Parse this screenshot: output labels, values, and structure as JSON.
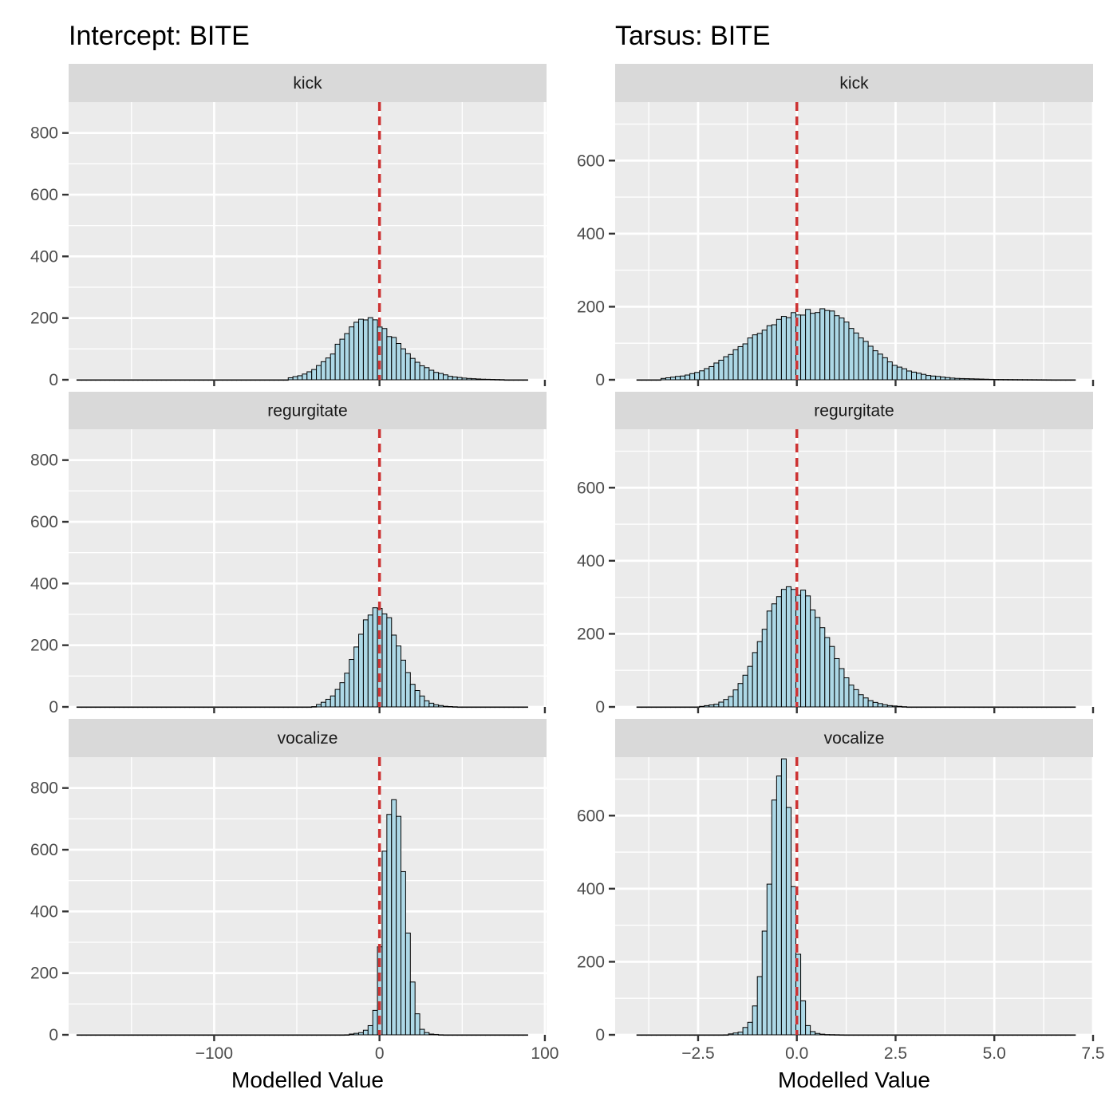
{
  "colors": {
    "bar_fill": "#add8e6",
    "bar_outline": "#000000",
    "reference_line": "#cd3333",
    "panel_background": "#ebebeb",
    "strip_background": "#d9d9d9"
  },
  "chart_data": [
    {
      "type": "bar",
      "title": "Intercept: BITE",
      "xlabel": "Modelled Value",
      "ylabel": "",
      "xlim": [
        -188,
        101
      ],
      "ylim": [
        0,
        900
      ],
      "x_ticks": [
        -100,
        0,
        100
      ],
      "x_tick_labels": [
        "−100",
        "0",
        "100"
      ],
      "y_ticks": [
        0,
        200,
        400,
        600,
        800
      ],
      "y_tick_labels": [
        "0",
        "200",
        "400",
        "600",
        "800"
      ],
      "reference_line_x": 0,
      "grid": true,
      "x_range_data": [
        -183,
        89
      ],
      "bin_width": 2.84,
      "facets": [
        {
          "label": "kick",
          "bins": [
            [
              -55,
              5
            ],
            [
              -47,
              15
            ],
            [
              -40,
              30
            ],
            [
              -35,
              55
            ],
            [
              -30,
              75
            ],
            [
              -27,
              95
            ],
            [
              -24,
              125
            ],
            [
              -20,
              150
            ],
            [
              -16,
              175
            ],
            [
              -13,
              190
            ],
            [
              -10,
              200
            ],
            [
              -6,
              195
            ],
            [
              -2,
              185
            ],
            [
              2,
              170
            ],
            [
              5,
              150
            ],
            [
              9,
              130
            ],
            [
              13,
              110
            ],
            [
              17,
              85
            ],
            [
              22,
              60
            ],
            [
              28,
              40
            ],
            [
              34,
              25
            ],
            [
              42,
              12
            ],
            [
              52,
              5
            ],
            [
              62,
              2
            ],
            [
              75,
              0.5
            ]
          ]
        },
        {
          "label": "regurgitate",
          "bins": [
            [
              -40,
              0
            ],
            [
              -35,
              12
            ],
            [
              -28,
              35
            ],
            [
              -22,
              85
            ],
            [
              -17,
              145
            ],
            [
              -13,
              215
            ],
            [
              -9,
              275
            ],
            [
              -5,
              315
            ],
            [
              -1,
              325
            ],
            [
              2,
              320
            ],
            [
              5,
              295
            ],
            [
              8,
              250
            ],
            [
              12,
              190
            ],
            [
              15,
              135
            ],
            [
              19,
              85
            ],
            [
              23,
              50
            ],
            [
              28,
              22
            ],
            [
              33,
              8
            ],
            [
              40,
              2
            ],
            [
              48,
              0
            ]
          ]
        },
        {
          "label": "vocalize",
          "bins": [
            [
              -20,
              0
            ],
            [
              -10,
              8
            ],
            [
              -6,
              25
            ],
            [
              -4,
              50
            ],
            [
              -2,
              95
            ],
            [
              -1,
              150
            ],
            [
              0,
              250
            ],
            [
              1,
              380
            ],
            [
              2,
              520
            ],
            [
              4,
              660
            ],
            [
              6,
              740
            ],
            [
              8,
              775
            ],
            [
              10,
              750
            ],
            [
              12,
              680
            ],
            [
              14,
              560
            ],
            [
              16,
              420
            ],
            [
              18,
              290
            ],
            [
              20,
              170
            ],
            [
              22,
              90
            ],
            [
              24,
              40
            ],
            [
              26,
              15
            ],
            [
              30,
              3
            ],
            [
              38,
              0
            ]
          ]
        }
      ]
    },
    {
      "type": "bar",
      "title": "Tarsus: BITE",
      "xlabel": "Modelled Value",
      "ylabel": "",
      "xlim": [
        -4.6,
        7.5
      ],
      "ylim": [
        0,
        760
      ],
      "x_ticks": [
        -2.5,
        0,
        2.5,
        5,
        7.5
      ],
      "x_tick_labels": [
        "−2.5",
        "0.0",
        "2.5",
        "5.0",
        "7.5"
      ],
      "y_ticks": [
        0,
        200,
        400,
        600
      ],
      "y_tick_labels": [
        "0",
        "200",
        "400",
        "600"
      ],
      "reference_line_x": 0,
      "grid": true,
      "x_range_data": [
        -4.05,
        7.0
      ],
      "bin_width": 0.122,
      "facets": [
        {
          "label": "kick",
          "bins": [
            [
              -3.5,
              2
            ],
            [
              -2.8,
              12
            ],
            [
              -2.4,
              25
            ],
            [
              -2.1,
              40
            ],
            [
              -1.8,
              60
            ],
            [
              -1.5,
              85
            ],
            [
              -1.2,
              110
            ],
            [
              -0.9,
              135
            ],
            [
              -0.6,
              155
            ],
            [
              -0.3,
              170
            ],
            [
              0.0,
              180
            ],
            [
              0.3,
              185
            ],
            [
              0.6,
              192
            ],
            [
              0.9,
              185
            ],
            [
              1.2,
              160
            ],
            [
              1.5,
              130
            ],
            [
              1.8,
              100
            ],
            [
              2.1,
              70
            ],
            [
              2.4,
              45
            ],
            [
              2.8,
              25
            ],
            [
              3.3,
              12
            ],
            [
              4.0,
              4
            ],
            [
              5.0,
              1
            ],
            [
              6.5,
              0
            ]
          ]
        },
        {
          "label": "regurgitate",
          "bins": [
            [
              -2.5,
              0
            ],
            [
              -2.0,
              8
            ],
            [
              -1.7,
              25
            ],
            [
              -1.4,
              65
            ],
            [
              -1.15,
              120
            ],
            [
              -0.9,
              190
            ],
            [
              -0.65,
              265
            ],
            [
              -0.4,
              310
            ],
            [
              -0.15,
              325
            ],
            [
              0.1,
              315
            ],
            [
              0.35,
              285
            ],
            [
              0.6,
              230
            ],
            [
              0.85,
              170
            ],
            [
              1.1,
              110
            ],
            [
              1.35,
              65
            ],
            [
              1.6,
              35
            ],
            [
              1.9,
              15
            ],
            [
              2.3,
              4
            ],
            [
              2.8,
              0
            ]
          ]
        },
        {
          "label": "vocalize",
          "bins": [
            [
              -1.8,
              0
            ],
            [
              -1.4,
              8
            ],
            [
              -1.15,
              40
            ],
            [
              -1.0,
              110
            ],
            [
              -0.85,
              240
            ],
            [
              -0.7,
              420
            ],
            [
              -0.6,
              590
            ],
            [
              -0.5,
              700
            ],
            [
              -0.4,
              730
            ],
            [
              -0.3,
              720
            ],
            [
              -0.2,
              620
            ],
            [
              -0.1,
              450
            ],
            [
              0.0,
              280
            ],
            [
              0.1,
              140
            ],
            [
              0.2,
              55
            ],
            [
              0.3,
              18
            ],
            [
              0.45,
              5
            ],
            [
              0.7,
              1
            ],
            [
              1.2,
              0
            ]
          ]
        }
      ]
    }
  ]
}
